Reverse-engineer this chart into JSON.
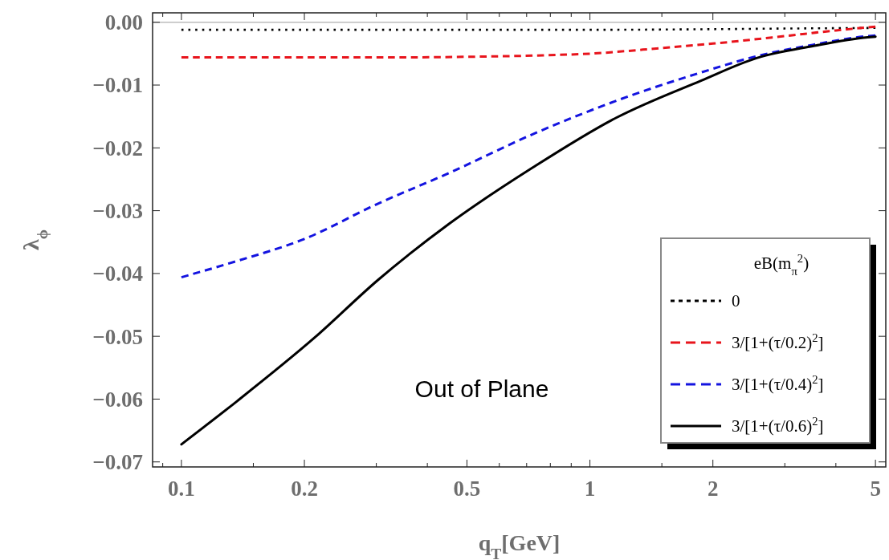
{
  "chart_data": {
    "type": "line",
    "xlabel": "q$_{T}$[GeV]",
    "ylabel": "λ$_{ϕ}$",
    "legend_title": "eB(m$_{π}$$^{2}$)",
    "legend": "bottom right",
    "log": "x",
    "xlim": [
      0.085,
      5.3
    ],
    "ylim": [
      -0.0708,
      0.0015
    ],
    "xticks": [
      {
        "value": 0.09,
        "label": null
      },
      0.1,
      {
        "value": 0.15,
        "label": null
      },
      0.2,
      {
        "value": 0.3,
        "label": null
      },
      {
        "value": 0.4,
        "label": null
      },
      0.5,
      {
        "value": 0.6,
        "label": null
      },
      {
        "value": 0.7,
        "label": null
      },
      {
        "value": 0.8,
        "label": null
      },
      {
        "value": 0.9,
        "label": null
      },
      1,
      {
        "value": 1.5,
        "label": null
      },
      2,
      {
        "value": 3,
        "label": null
      },
      {
        "value": 4,
        "label": null
      },
      5
    ],
    "yticks": [
      {
        "value": 0,
        "label": "0.00"
      },
      {
        "value": -0.01,
        "label": "−0.01"
      },
      {
        "value": -0.02,
        "label": "−0.02"
      },
      {
        "value": -0.03,
        "label": "−0.03"
      },
      {
        "value": -0.04,
        "label": "−0.04"
      },
      {
        "value": -0.05,
        "label": "−0.05"
      },
      {
        "value": -0.06,
        "label": "−0.06"
      },
      {
        "value": -0.07,
        "label": "−0.07"
      }
    ],
    "ref_lines": [
      {
        "axis": "y",
        "value": 0,
        "color": "#bbbbbb"
      }
    ],
    "annotations": [
      "Out of Plane"
    ],
    "series": [
      {
        "name": "0",
        "color": "#000000",
        "line_style": "dotted",
        "x": [
          0.1,
          0.5,
          1,
          2,
          3,
          5
        ],
        "values": [
          -0.0012,
          -0.0012,
          -0.0012,
          -0.0011,
          -0.001,
          -0.0009
        ]
      },
      {
        "name": "3/[1+(τ/0.2)$^{2}$]",
        "color": "#e8141c",
        "line_style": "dashed",
        "x": [
          0.1,
          0.2,
          0.3,
          0.5,
          0.73,
          1,
          1.5,
          2,
          3,
          4,
          5
        ],
        "values": [
          -0.0056,
          -0.0056,
          -0.0056,
          -0.0055,
          -0.0053,
          -0.005,
          -0.0041,
          -0.0034,
          -0.0022,
          -0.0013,
          -0.0007
        ]
      },
      {
        "name": "3/[1+(τ/0.4)$^{2}$]",
        "color": "#1414e0",
        "line_style": "dashed",
        "x": [
          0.1,
          0.137,
          0.2,
          0.3,
          0.452,
          0.726,
          1.16,
          1.87,
          2.56,
          3.51,
          4.79,
          5
        ],
        "values": [
          -0.0406,
          -0.038,
          -0.0345,
          -0.029,
          -0.024,
          -0.0178,
          -0.0125,
          -0.008,
          -0.0054,
          -0.0036,
          -0.0022,
          -0.0021
        ]
      },
      {
        "name": "3/[1+(τ/0.6)$^{2}$]",
        "color": "#000000",
        "line_style": "solid",
        "x": [
          0.1,
          0.137,
          0.212,
          0.302,
          0.452,
          0.726,
          1.16,
          1.87,
          2.56,
          3.51,
          4.79,
          5
        ],
        "values": [
          -0.0672,
          -0.0603,
          -0.0502,
          -0.0411,
          -0.0321,
          -0.0231,
          -0.0152,
          -0.0093,
          -0.0057,
          -0.0038,
          -0.0024,
          -0.0023
        ]
      }
    ]
  }
}
